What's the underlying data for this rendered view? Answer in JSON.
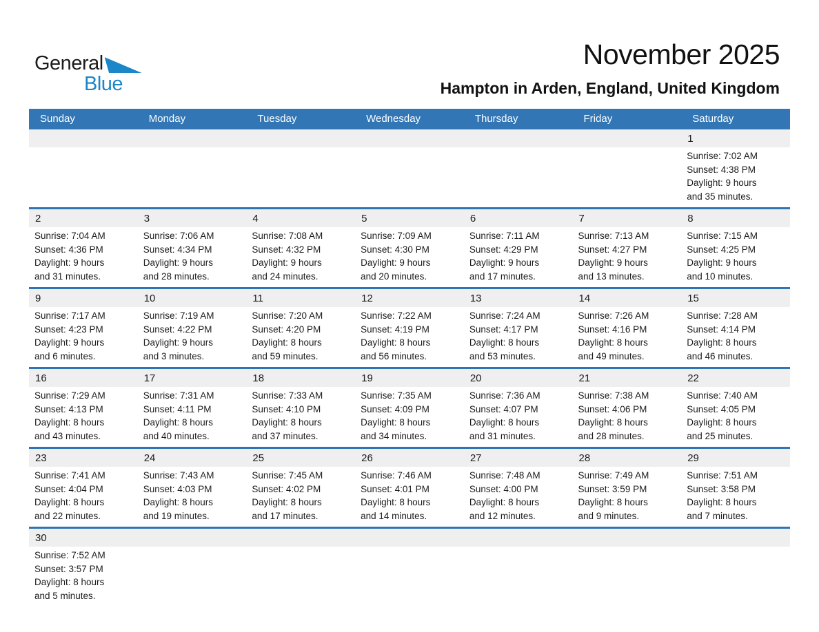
{
  "logo": {
    "part1": "General",
    "part2": "Blue",
    "triangle_icon": "triangle-flag"
  },
  "title": "November 2025",
  "subtitle": "Hampton in Arden, England, United Kingdom",
  "weekday_headers": [
    "Sunday",
    "Monday",
    "Tuesday",
    "Wednesday",
    "Thursday",
    "Friday",
    "Saturday"
  ],
  "colors": {
    "header_bg": "#3276B5",
    "header_text": "#FFFFFF",
    "week_divider": "#2E75B6",
    "day_band_bg": "#EFEFEF",
    "logo_accent": "#1B86C8"
  },
  "weeks": [
    [
      null,
      null,
      null,
      null,
      null,
      null,
      {
        "day": "1",
        "lines": [
          "Sunrise: 7:02 AM",
          "Sunset: 4:38 PM",
          "Daylight: 9 hours",
          "and 35 minutes."
        ]
      }
    ],
    [
      {
        "day": "2",
        "lines": [
          "Sunrise: 7:04 AM",
          "Sunset: 4:36 PM",
          "Daylight: 9 hours",
          "and 31 minutes."
        ]
      },
      {
        "day": "3",
        "lines": [
          "Sunrise: 7:06 AM",
          "Sunset: 4:34 PM",
          "Daylight: 9 hours",
          "and 28 minutes."
        ]
      },
      {
        "day": "4",
        "lines": [
          "Sunrise: 7:08 AM",
          "Sunset: 4:32 PM",
          "Daylight: 9 hours",
          "and 24 minutes."
        ]
      },
      {
        "day": "5",
        "lines": [
          "Sunrise: 7:09 AM",
          "Sunset: 4:30 PM",
          "Daylight: 9 hours",
          "and 20 minutes."
        ]
      },
      {
        "day": "6",
        "lines": [
          "Sunrise: 7:11 AM",
          "Sunset: 4:29 PM",
          "Daylight: 9 hours",
          "and 17 minutes."
        ]
      },
      {
        "day": "7",
        "lines": [
          "Sunrise: 7:13 AM",
          "Sunset: 4:27 PM",
          "Daylight: 9 hours",
          "and 13 minutes."
        ]
      },
      {
        "day": "8",
        "lines": [
          "Sunrise: 7:15 AM",
          "Sunset: 4:25 PM",
          "Daylight: 9 hours",
          "and 10 minutes."
        ]
      }
    ],
    [
      {
        "day": "9",
        "lines": [
          "Sunrise: 7:17 AM",
          "Sunset: 4:23 PM",
          "Daylight: 9 hours",
          "and 6 minutes."
        ]
      },
      {
        "day": "10",
        "lines": [
          "Sunrise: 7:19 AM",
          "Sunset: 4:22 PM",
          "Daylight: 9 hours",
          "and 3 minutes."
        ]
      },
      {
        "day": "11",
        "lines": [
          "Sunrise: 7:20 AM",
          "Sunset: 4:20 PM",
          "Daylight: 8 hours",
          "and 59 minutes."
        ]
      },
      {
        "day": "12",
        "lines": [
          "Sunrise: 7:22 AM",
          "Sunset: 4:19 PM",
          "Daylight: 8 hours",
          "and 56 minutes."
        ]
      },
      {
        "day": "13",
        "lines": [
          "Sunrise: 7:24 AM",
          "Sunset: 4:17 PM",
          "Daylight: 8 hours",
          "and 53 minutes."
        ]
      },
      {
        "day": "14",
        "lines": [
          "Sunrise: 7:26 AM",
          "Sunset: 4:16 PM",
          "Daylight: 8 hours",
          "and 49 minutes."
        ]
      },
      {
        "day": "15",
        "lines": [
          "Sunrise: 7:28 AM",
          "Sunset: 4:14 PM",
          "Daylight: 8 hours",
          "and 46 minutes."
        ]
      }
    ],
    [
      {
        "day": "16",
        "lines": [
          "Sunrise: 7:29 AM",
          "Sunset: 4:13 PM",
          "Daylight: 8 hours",
          "and 43 minutes."
        ]
      },
      {
        "day": "17",
        "lines": [
          "Sunrise: 7:31 AM",
          "Sunset: 4:11 PM",
          "Daylight: 8 hours",
          "and 40 minutes."
        ]
      },
      {
        "day": "18",
        "lines": [
          "Sunrise: 7:33 AM",
          "Sunset: 4:10 PM",
          "Daylight: 8 hours",
          "and 37 minutes."
        ]
      },
      {
        "day": "19",
        "lines": [
          "Sunrise: 7:35 AM",
          "Sunset: 4:09 PM",
          "Daylight: 8 hours",
          "and 34 minutes."
        ]
      },
      {
        "day": "20",
        "lines": [
          "Sunrise: 7:36 AM",
          "Sunset: 4:07 PM",
          "Daylight: 8 hours",
          "and 31 minutes."
        ]
      },
      {
        "day": "21",
        "lines": [
          "Sunrise: 7:38 AM",
          "Sunset: 4:06 PM",
          "Daylight: 8 hours",
          "and 28 minutes."
        ]
      },
      {
        "day": "22",
        "lines": [
          "Sunrise: 7:40 AM",
          "Sunset: 4:05 PM",
          "Daylight: 8 hours",
          "and 25 minutes."
        ]
      }
    ],
    [
      {
        "day": "23",
        "lines": [
          "Sunrise: 7:41 AM",
          "Sunset: 4:04 PM",
          "Daylight: 8 hours",
          "and 22 minutes."
        ]
      },
      {
        "day": "24",
        "lines": [
          "Sunrise: 7:43 AM",
          "Sunset: 4:03 PM",
          "Daylight: 8 hours",
          "and 19 minutes."
        ]
      },
      {
        "day": "25",
        "lines": [
          "Sunrise: 7:45 AM",
          "Sunset: 4:02 PM",
          "Daylight: 8 hours",
          "and 17 minutes."
        ]
      },
      {
        "day": "26",
        "lines": [
          "Sunrise: 7:46 AM",
          "Sunset: 4:01 PM",
          "Daylight: 8 hours",
          "and 14 minutes."
        ]
      },
      {
        "day": "27",
        "lines": [
          "Sunrise: 7:48 AM",
          "Sunset: 4:00 PM",
          "Daylight: 8 hours",
          "and 12 minutes."
        ]
      },
      {
        "day": "28",
        "lines": [
          "Sunrise: 7:49 AM",
          "Sunset: 3:59 PM",
          "Daylight: 8 hours",
          "and 9 minutes."
        ]
      },
      {
        "day": "29",
        "lines": [
          "Sunrise: 7:51 AM",
          "Sunset: 3:58 PM",
          "Daylight: 8 hours",
          "and 7 minutes."
        ]
      }
    ],
    [
      {
        "day": "30",
        "lines": [
          "Sunrise: 7:52 AM",
          "Sunset: 3:57 PM",
          "Daylight: 8 hours",
          "and 5 minutes."
        ]
      },
      null,
      null,
      null,
      null,
      null,
      null
    ]
  ]
}
